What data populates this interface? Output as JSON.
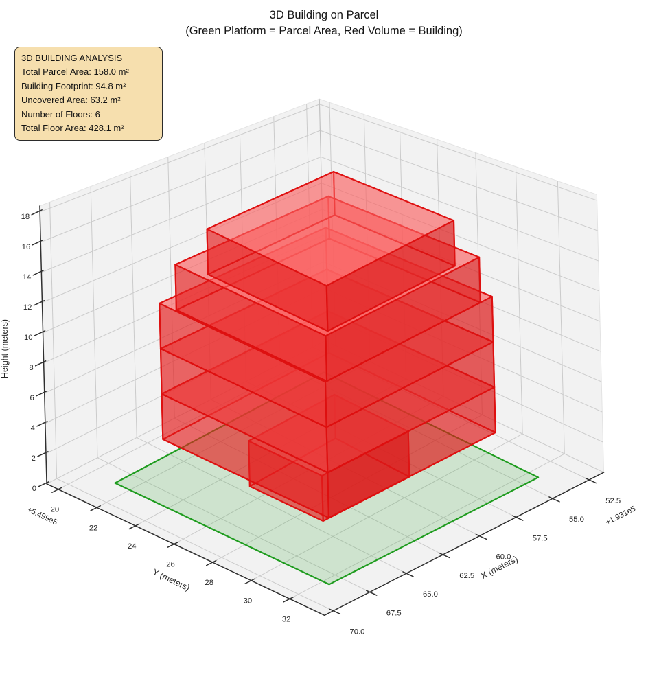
{
  "title": {
    "line1": "3D Building on Parcel",
    "line2": "(Green Platform = Parcel Area, Red Volume = Building)"
  },
  "info_box": {
    "heading": "3D BUILDING ANALYSIS",
    "lines": [
      "Total Parcel Area: 158.0 m²",
      "Building Footprint: 94.8 m²",
      "Uncovered Area: 63.2 m²",
      "Number of Floors: 6",
      "Total Floor Area: 428.1 m²"
    ]
  },
  "chart_data": {
    "type": "3d-building-plot",
    "view": "matplotlib 3d axes, elev~30 azim~-60",
    "stats": {
      "total_parcel_area_m2": 158.0,
      "building_footprint_m2": 94.8,
      "uncovered_area_m2": 63.2,
      "number_of_floors": 6,
      "total_floor_area_m2": 428.1,
      "floor_height_m": 3,
      "building_total_height_m": 18
    },
    "axes": {
      "x": {
        "label": "X (meters)",
        "offset_text": "+1.931e5",
        "ticks": [
          52.5,
          55,
          57.5,
          60,
          62.5,
          65,
          67.5,
          70
        ],
        "tick_labels": [
          "52.5",
          "55.0",
          "57.5",
          "60.0",
          "62.5",
          "65.0",
          "67.5",
          "70.0"
        ],
        "range": [
          51.5,
          70.6
        ]
      },
      "y": {
        "label": "Y (meters)",
        "offset_text": "+5.499e5",
        "ticks": [
          20,
          22,
          24,
          26,
          28,
          30,
          32
        ],
        "tick_labels": [
          "20",
          "22",
          "24",
          "26",
          "28",
          "30",
          "32"
        ],
        "range": [
          19.4,
          33.8
        ]
      },
      "z": {
        "label": "Height (meters)",
        "ticks": [
          0,
          2,
          4,
          6,
          8,
          10,
          12,
          14,
          16,
          18
        ],
        "tick_labels": [
          "0",
          "2",
          "4",
          "6",
          "8",
          "10",
          "12",
          "14",
          "16",
          "18"
        ],
        "range": [
          0,
          18.4
        ]
      }
    },
    "parcel": {
      "x": [
        54.0,
        68.3
      ],
      "y": [
        21.2,
        32.3
      ],
      "z": 0
    },
    "building_floors": [
      {
        "level": 1,
        "x": [
          58.2,
          64.1
        ],
        "y": [
          25.0,
          28.8
        ],
        "z": [
          0,
          3
        ]
      },
      {
        "level": 2,
        "x": [
          55.4,
          66.8
        ],
        "y": [
          22.6,
          31.2
        ],
        "z": [
          3,
          6
        ]
      },
      {
        "level": 3,
        "x": [
          55.4,
          66.8
        ],
        "y": [
          22.6,
          31.2
        ],
        "z": [
          6,
          9
        ]
      },
      {
        "level": 4,
        "x": [
          55.4,
          66.8
        ],
        "y": [
          22.6,
          31.2
        ],
        "z": [
          9,
          12
        ]
      },
      {
        "level": 5,
        "x": [
          56.2,
          66.7
        ],
        "y": [
          23.4,
          31.2
        ],
        "z": [
          12,
          15
        ]
      },
      {
        "level": 6,
        "x": [
          57.6,
          66.3
        ],
        "y": [
          24.8,
          31.0
        ],
        "z": [
          15,
          18
        ]
      }
    ],
    "colors": {
      "building_side": "#e31b1b",
      "building_side2": "#da1414",
      "building_top": "#ff6e6e",
      "building_hidden": "#e83030",
      "building_edge": "#dd0f0f",
      "parcel_fill": "#2ca02c",
      "parcel_edge": "#1f9c1f",
      "pane": "#f2f2f2",
      "pane_edge": "#e3e3e3",
      "grid": "#cbcbcb",
      "spine": "#2f2f2f",
      "text": "#262626"
    }
  }
}
